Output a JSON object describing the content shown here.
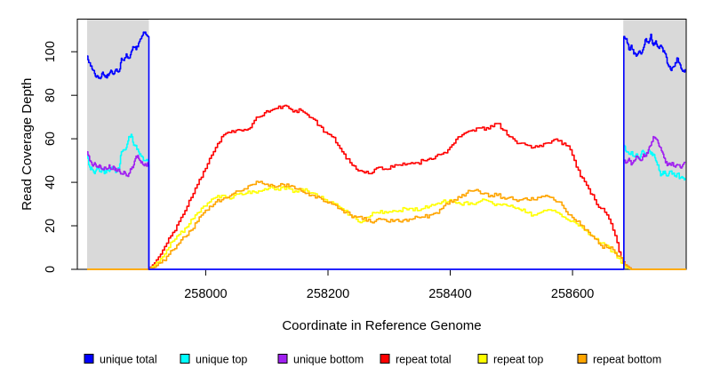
{
  "figure": {
    "background": "#ffffff",
    "plot_background": "#ffffff",
    "box_color": "#000000",
    "shade_color": "#d9d9d9"
  },
  "legend": {
    "items": [
      {
        "label": "unique total",
        "color": "#0000ff"
      },
      {
        "label": "unique top",
        "color": "#00ffff"
      },
      {
        "label": "unique bottom",
        "color": "#a020f0"
      },
      {
        "label": "repeat total",
        "color": "#ff0000"
      },
      {
        "label": "repeat top",
        "color": "#ffff00"
      },
      {
        "label": "repeat bottom",
        "color": "#ffa500"
      }
    ]
  },
  "chart_data": {
    "type": "line",
    "title": "",
    "xlabel": "Coordinate in Reference Genome",
    "ylabel": "Read Coverage Depth",
    "xlim": [
      257790,
      258786
    ],
    "ylim": [
      0,
      115
    ],
    "xticks": [
      258000,
      258200,
      258400,
      258600
    ],
    "yticks": [
      0,
      20,
      40,
      60,
      80,
      100
    ],
    "grid": false,
    "legend_position": "bottom",
    "shaded_regions": [
      {
        "name": "unique-region-left",
        "from": 257806,
        "to": 257907
      },
      {
        "name": "unique-region-right",
        "from": 258683,
        "to": 258786
      }
    ],
    "series": [
      {
        "name": "repeat total",
        "color": "#ff0000",
        "segments": [
          {
            "start": 257806,
            "step": 10,
            "values": [
              0,
              0,
              0,
              0,
              0,
              0,
              0,
              0,
              0,
              0,
              0,
              3,
              7,
              12,
              17,
              22,
              27,
              33,
              39,
              45,
              51,
              56,
              61,
              63,
              63,
              64,
              64,
              67,
              70,
              72,
              73,
              74,
              75,
              74,
              73,
              73,
              71,
              69,
              66,
              63,
              61,
              57,
              53,
              49,
              46,
              45,
              44,
              46,
              47,
              46,
              47,
              48,
              48,
              49,
              49,
              50,
              51,
              52,
              53,
              55,
              58,
              61,
              63,
              64,
              65,
              64,
              66,
              67,
              64,
              61,
              59,
              58,
              57,
              56,
              57,
              58,
              59,
              59,
              58,
              55,
              47,
              42,
              37,
              32,
              28,
              25,
              18,
              8,
              2,
              0,
              0,
              0,
              0,
              0,
              0,
              0,
              0,
              0,
              0
            ]
          }
        ]
      },
      {
        "name": "repeat top",
        "color": "#ffff00",
        "segments": [
          {
            "start": 257806,
            "step": 10,
            "values": [
              0,
              0,
              0,
              0,
              0,
              0,
              0,
              0,
              0,
              0,
              0,
              2,
              5,
              9,
              13,
              16,
              19,
              23,
              26,
              29,
              31,
              33,
              34,
              33,
              34,
              35,
              35,
              36,
              36,
              37,
              38,
              37,
              38,
              37,
              36,
              37,
              36,
              35,
              33,
              32,
              31,
              29,
              27,
              25,
              23,
              22,
              24,
              26,
              27,
              26,
              27,
              27,
              28,
              28,
              27,
              28,
              29,
              30,
              31,
              31,
              31,
              30,
              31,
              30,
              31,
              32,
              31,
              30,
              30,
              29,
              28,
              27,
              26,
              25,
              26,
              27,
              27,
              26,
              24,
              22,
              21,
              19,
              16,
              14,
              12,
              11,
              8,
              5,
              1,
              0,
              0,
              0,
              0,
              0,
              0,
              0,
              0,
              0,
              0
            ]
          }
        ]
      },
      {
        "name": "repeat bottom",
        "color": "#ffa500",
        "segments": [
          {
            "start": 257806,
            "step": 10,
            "values": [
              0,
              0,
              0,
              0,
              0,
              0,
              0,
              0,
              0,
              0,
              0,
              1,
              3,
              6,
              9,
              12,
              15,
              18,
              22,
              26,
              29,
              31,
              32,
              33,
              35,
              36,
              37,
              39,
              40,
              39,
              39,
              38,
              39,
              38,
              37,
              36,
              35,
              34,
              33,
              31,
              30,
              28,
              26,
              25,
              24,
              23,
              23,
              22,
              23,
              22,
              22,
              22,
              23,
              23,
              24,
              24,
              25,
              26,
              28,
              30,
              32,
              33,
              35,
              36,
              36,
              35,
              34,
              34,
              33,
              33,
              32,
              32,
              32,
              32,
              33,
              34,
              33,
              31,
              28,
              25,
              22,
              20,
              17,
              14,
              11,
              10,
              9,
              6,
              2,
              0,
              0,
              0,
              0,
              0,
              0,
              0,
              0,
              0,
              0
            ]
          }
        ]
      },
      {
        "name": "unique top",
        "color": "#00ffff",
        "segments": [
          {
            "start": 257806,
            "step": 4,
            "values": [
              52,
              47,
              46,
              44,
              47,
              45,
              46,
              44,
              46,
              45,
              47,
              46,
              45,
              46,
              54,
              55,
              56,
              61,
              62,
              57,
              57,
              54,
              52,
              50,
              50,
              50
            ]
          },
          {
            "start": 257907,
            "step": 776,
            "values": [
              0,
              0
            ]
          },
          {
            "start": 258684,
            "step": 4,
            "values": [
              57,
              54,
              53,
              54,
              52,
              53,
              51,
              53,
              54,
              52,
              55,
              53,
              53,
              50,
              48,
              43,
              45,
              44,
              43,
              45,
              44,
              43,
              44,
              42,
              42,
              42
            ]
          }
        ]
      },
      {
        "name": "unique bottom",
        "color": "#a020f0",
        "segments": [
          {
            "start": 257806,
            "step": 4,
            "values": [
              54,
              50,
              48,
              49,
              47,
              48,
              46,
              47,
              46,
              48,
              46,
              47,
              45,
              46,
              44,
              45,
              43,
              44,
              46,
              48,
              52,
              51,
              49,
              48,
              48,
              48
            ]
          },
          {
            "start": 257907,
            "step": 776,
            "values": [
              0,
              0
            ]
          },
          {
            "start": 258684,
            "step": 4,
            "values": [
              50,
              49,
              51,
              48,
              50,
              52,
              51,
              50,
              53,
              52,
              55,
              57,
              61,
              60,
              58,
              56,
              53,
              49,
              48,
              48,
              49,
              47,
              48,
              47,
              48,
              49
            ]
          }
        ]
      },
      {
        "name": "unique total",
        "color": "#0000ff",
        "segments": [
          {
            "start": 257806,
            "step": 4,
            "values": [
              98,
              95,
              92,
              90,
              89,
              88,
              90,
              89,
              88,
              90,
              91,
              90,
              92,
              91,
              97,
              96,
              99,
              97,
              100,
              102,
              101,
              104,
              106,
              109,
              108,
              107
            ]
          },
          {
            "start": 257907,
            "step": 776,
            "values": [
              0,
              0
            ]
          },
          {
            "start": 258684,
            "step": 4,
            "values": [
              107,
              106,
              101,
              103,
              99,
              98,
              100,
              99,
              102,
              106,
              104,
              108,
              103,
              105,
              102,
              103,
              100,
              99,
              94,
              92,
              93,
              95,
              97,
              94,
              91,
              92
            ]
          }
        ]
      }
    ]
  }
}
